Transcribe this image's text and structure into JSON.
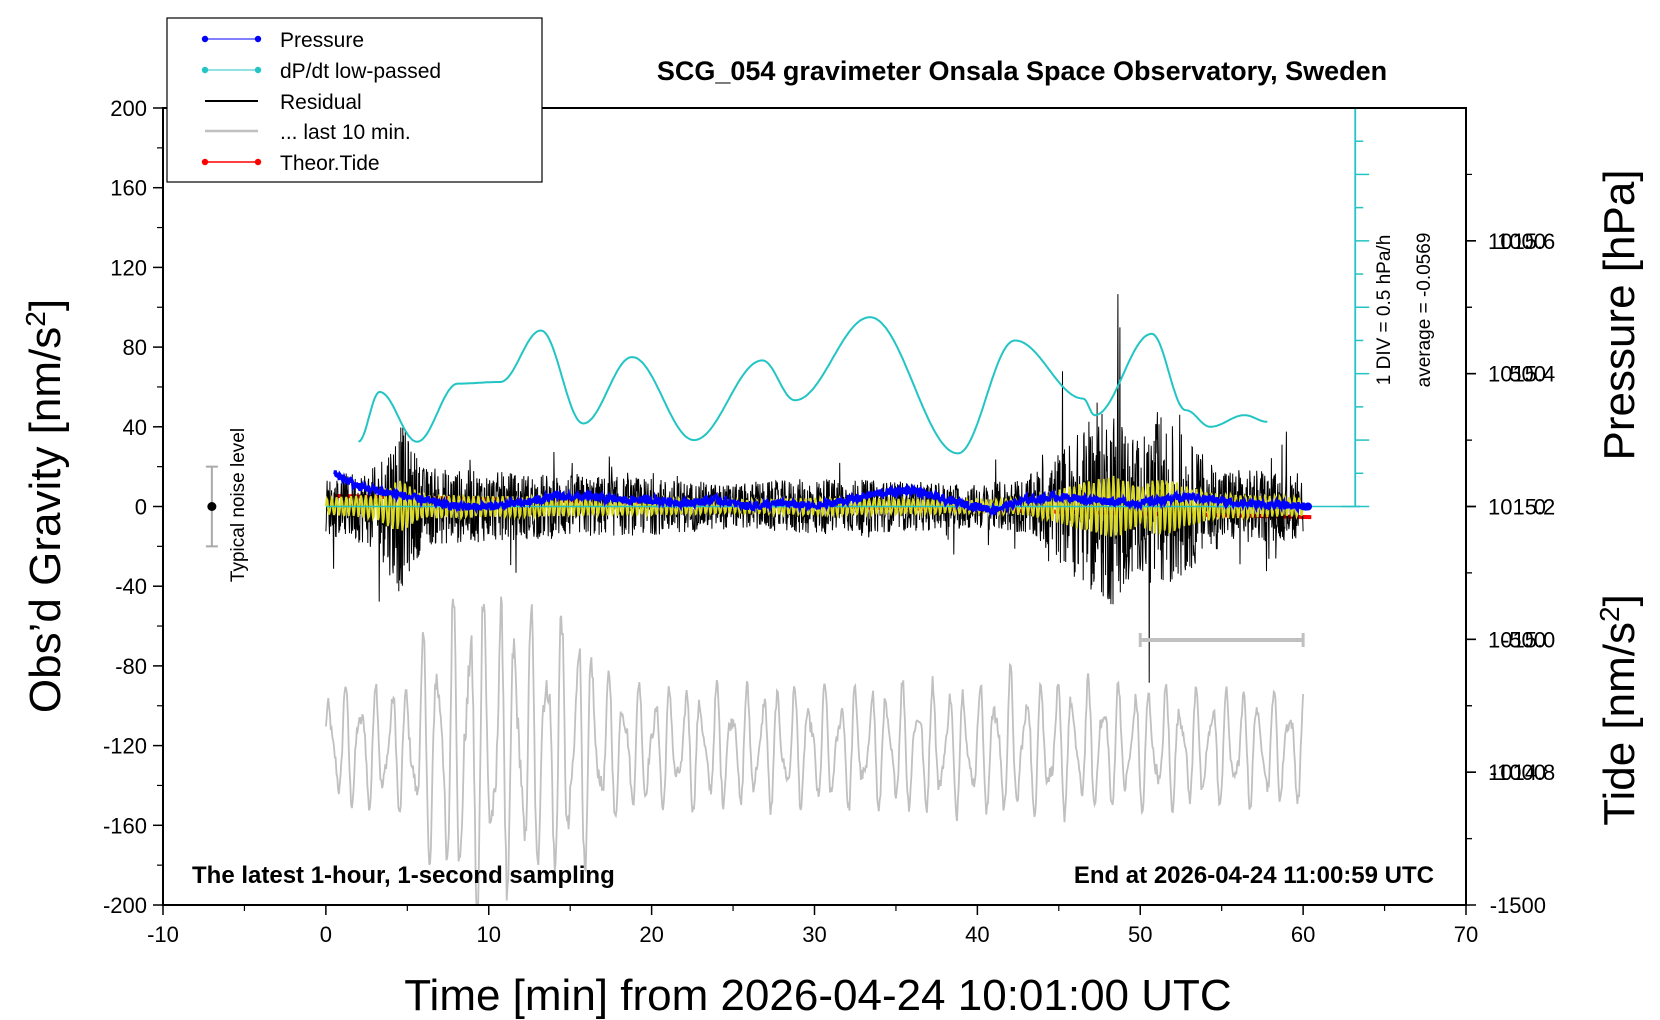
{
  "chart_data": {
    "type": "line",
    "title": "SCG_054 gravimeter Onsala Space Observatory, Sweden",
    "xlabel": "Time [min] from 2026-04-24 10:01:00 UTC",
    "ylabel_left": "Obs'd Gravity [nm/s2]",
    "ylabel_pressure": "Pressure [hPa]",
    "ylabel_tide": "Tide [nm/s2]",
    "xlim": [
      -10,
      70
    ],
    "ylim_gravity": [
      -200,
      200
    ],
    "ylim_pressure": [
      1014.6,
      1015.8
    ],
    "ylim_tide": [
      -1500,
      1500
    ],
    "x_ticks": [
      "-10",
      "0",
      "10",
      "20",
      "30",
      "40",
      "50",
      "60",
      "70"
    ],
    "y_ticks_gravity": [
      "200",
      "160",
      "120",
      "80",
      "40",
      "0",
      "-40",
      "-80",
      "-120",
      "-160",
      "-200"
    ],
    "y_ticks_pressure": [
      "1015.6",
      "1015.4",
      "1015.2",
      "1015.0",
      "1014.8"
    ],
    "y_ticks_tide": [
      "1000",
      "500",
      "0",
      "-500",
      "-1000",
      "-1500"
    ],
    "legend_position": "top-left",
    "grid": false,
    "bottom_left_note": "The latest 1-hour, 1-second sampling",
    "bottom_right_note": "End at 2026-04-24 11:00:59 UTC",
    "noise_label": "Typical noise level",
    "dpdt_scale_label": "1 DIV = 0.5 hPa/h",
    "dpdt_average_label": "average = -0.0569",
    "dpdt_divisions": 12,
    "noise_bar": {
      "center": 0,
      "half_range": 20
    },
    "last10_bar": {
      "x": [
        50,
        60
      ],
      "y_gravity": -67
    },
    "colors": {
      "pressure": "#0000ff",
      "dpdt": "#23c4c4",
      "residual": "#000000",
      "residual_filtered": "#d9d926",
      "last10": "#c0c0c0",
      "tide": "#ff0000"
    },
    "series": [
      {
        "name": "Pressure",
        "axis": "pressure",
        "x": [
          0.5,
          2,
          4,
          6,
          8,
          10,
          12,
          14,
          16,
          18,
          20,
          22,
          24,
          26,
          28,
          30,
          32,
          34,
          36,
          38,
          40,
          41,
          43,
          45,
          47,
          50,
          53,
          56,
          60.3
        ],
        "y": [
          1015.25,
          1015.23,
          1015.22,
          1015.21,
          1015.2,
          1015.2,
          1015.205,
          1015.215,
          1015.215,
          1015.21,
          1015.21,
          1015.205,
          1015.21,
          1015.2,
          1015.205,
          1015.2,
          1015.21,
          1015.22,
          1015.225,
          1015.21,
          1015.2,
          1015.195,
          1015.21,
          1015.215,
          1015.21,
          1015.205,
          1015.215,
          1015.205,
          1015.2
        ]
      },
      {
        "name": "dP/dt low-passed",
        "axis": "dpdt_div",
        "x": [
          2,
          3.3,
          5.6,
          8.1,
          10.7,
          13.2,
          15.8,
          18.8,
          22.6,
          26.8,
          28.8,
          33.4,
          38.8,
          42.3,
          46.5,
          47.2,
          50.7,
          52.8,
          54.3,
          56.4,
          57.8
        ],
        "y": [
          1.95,
          3.45,
          1.95,
          3.7,
          3.75,
          5.3,
          2.5,
          4.5,
          2.0,
          4.4,
          3.2,
          5.7,
          1.6,
          5.0,
          3.25,
          2.75,
          5.2,
          2.9,
          2.4,
          2.75,
          2.55
        ]
      },
      {
        "name": "Residual",
        "axis": "gravity",
        "envelope_x": [
          0,
          3,
          4.5,
          6,
          10,
          15,
          20,
          25,
          30,
          35,
          40,
          43,
          45,
          47,
          48.5,
          50,
          51,
          52,
          53,
          55,
          60
        ],
        "envelope_y": [
          18,
          25,
          55,
          25,
          22,
          20,
          18,
          14,
          18,
          16,
          14,
          18,
          35,
          55,
          65,
          40,
          60,
          55,
          40,
          25,
          20
        ]
      },
      {
        "name": "... last 10 min.",
        "axis": "gravity",
        "envelope_x": [
          0,
          5,
          7,
          9,
          10,
          12,
          14,
          15.5,
          17,
          20,
          30,
          40,
          42,
          45,
          60
        ],
        "envelope_y": [
          -121,
          -121,
          -121,
          -121,
          -121,
          -121,
          -121,
          -121,
          -121,
          -121,
          -121,
          -121,
          -121,
          -121,
          -121
        ],
        "amplitude_x": [
          0,
          5,
          6.5,
          8,
          9.5,
          10.5,
          12.5,
          14,
          15.5,
          17,
          20,
          30,
          40,
          42,
          45,
          60
        ],
        "amplitude_y": [
          28,
          30,
          58,
          70,
          78,
          70,
          62,
          60,
          62,
          35,
          28,
          28,
          30,
          34,
          30,
          26
        ]
      },
      {
        "name": "Theor.Tide",
        "axis": "tide",
        "x": [
          0.5,
          60.5
        ],
        "y": [
          40,
          -40
        ]
      }
    ]
  }
}
